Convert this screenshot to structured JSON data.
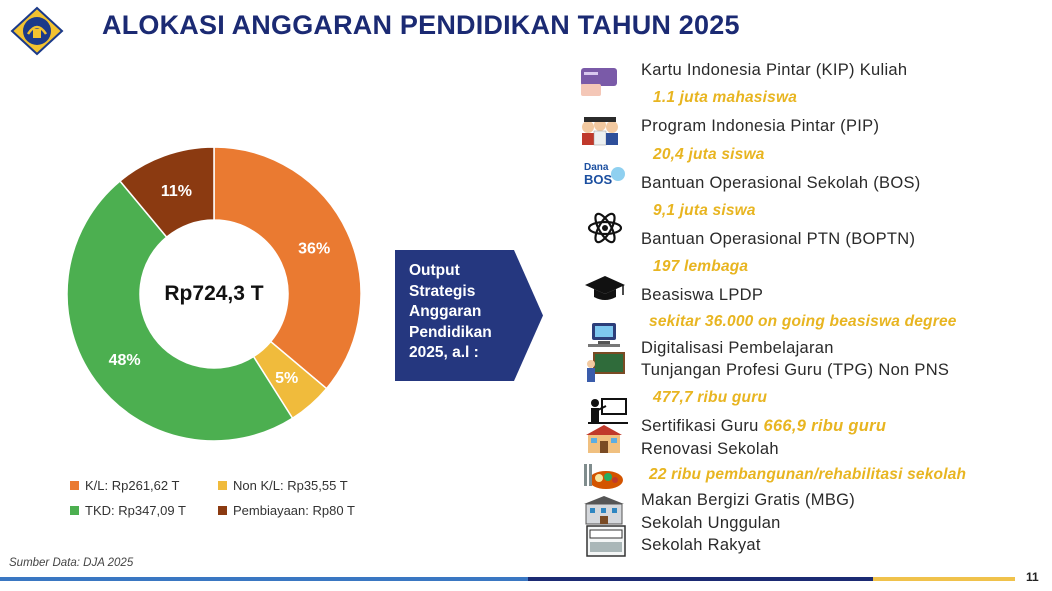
{
  "header": {
    "title": "ALOKASI ANGGARAN PENDIDIKAN TAHUN 2025"
  },
  "chart_data": {
    "type": "pie",
    "style": "donut",
    "center_label": "Rp724,3 T",
    "start_angle_deg": 0,
    "slices": [
      {
        "label": "K/L: Rp261,62 T",
        "value": 261.62,
        "percent_label": "36%",
        "color": "#ea7a31"
      },
      {
        "label": "Non K/L: Rp35,55 T",
        "value": 35.55,
        "percent_label": "5%",
        "color": "#f0bb3c"
      },
      {
        "label": "TKD: Rp347,09 T",
        "value": 347.09,
        "percent_label": "48%",
        "color": "#4caf50"
      },
      {
        "label": "Pembiayaan: Rp80 T",
        "value": 80,
        "percent_label": "11%",
        "color": "#8b3a11"
      }
    ],
    "legend_position": "bottom"
  },
  "arrow": {
    "lines": [
      "Output",
      "Strategis",
      "Anggaran",
      "Pendidikan",
      "2025, a.l :"
    ],
    "color": "#25377f"
  },
  "programs": [
    {
      "name": "Kartu Indonesia Pintar (KIP) Kuliah",
      "icon": "kip-card-icon"
    },
    {
      "highlight": "1.1 juta mahasiswa"
    },
    {
      "name": "Program Indonesia Pintar (PIP)",
      "icon": "students-icon"
    },
    {
      "highlight": "20,4 juta siswa"
    },
    {
      "name": "Bantuan Operasional Sekolah (BOS)",
      "icon": "dana-bos-icon"
    },
    {
      "highlight": "9,1 juta siswa"
    },
    {
      "name": "Bantuan Operasional PTN (BOPTN)",
      "icon": "atom-icon"
    },
    {
      "highlight": "197 lembaga"
    },
    {
      "name": "Beasiswa LPDP",
      "icon": "graduation-cap-icon"
    },
    {
      "highlight": "sekitar 36.000 on going beasiswa degree"
    },
    {
      "name": "Digitalisasi Pembelajaran",
      "icon": "digital-learning-icon"
    },
    {
      "name": "Tunjangan Profesi Guru (TPG) Non PNS",
      "icon": "teacher-board-icon"
    },
    {
      "highlight": "477,7 ribu guru"
    },
    {
      "name": "Sertifikasi Guru",
      "inline_highlight": "666,9 ribu guru",
      "icon": "teacher-presenting-icon"
    },
    {
      "name": "Renovasi Sekolah",
      "icon": "school-building-icon"
    },
    {
      "highlight": "22 ribu pembangunan/rehabilitasi sekolah"
    },
    {
      "name": "Makan Bergizi Gratis (MBG)",
      "icon": "meal-tray-icon"
    },
    {
      "name": "Sekolah Unggulan",
      "icon": "school-excellent-icon"
    },
    {
      "name": "Sekolah Rakyat",
      "icon": "sekolah-rakyat-icon"
    }
  ],
  "footer": {
    "source": "Sumber Data: DJA 2025",
    "page_number": "11"
  },
  "logo_icon": "ministry-finance-logo-icon"
}
